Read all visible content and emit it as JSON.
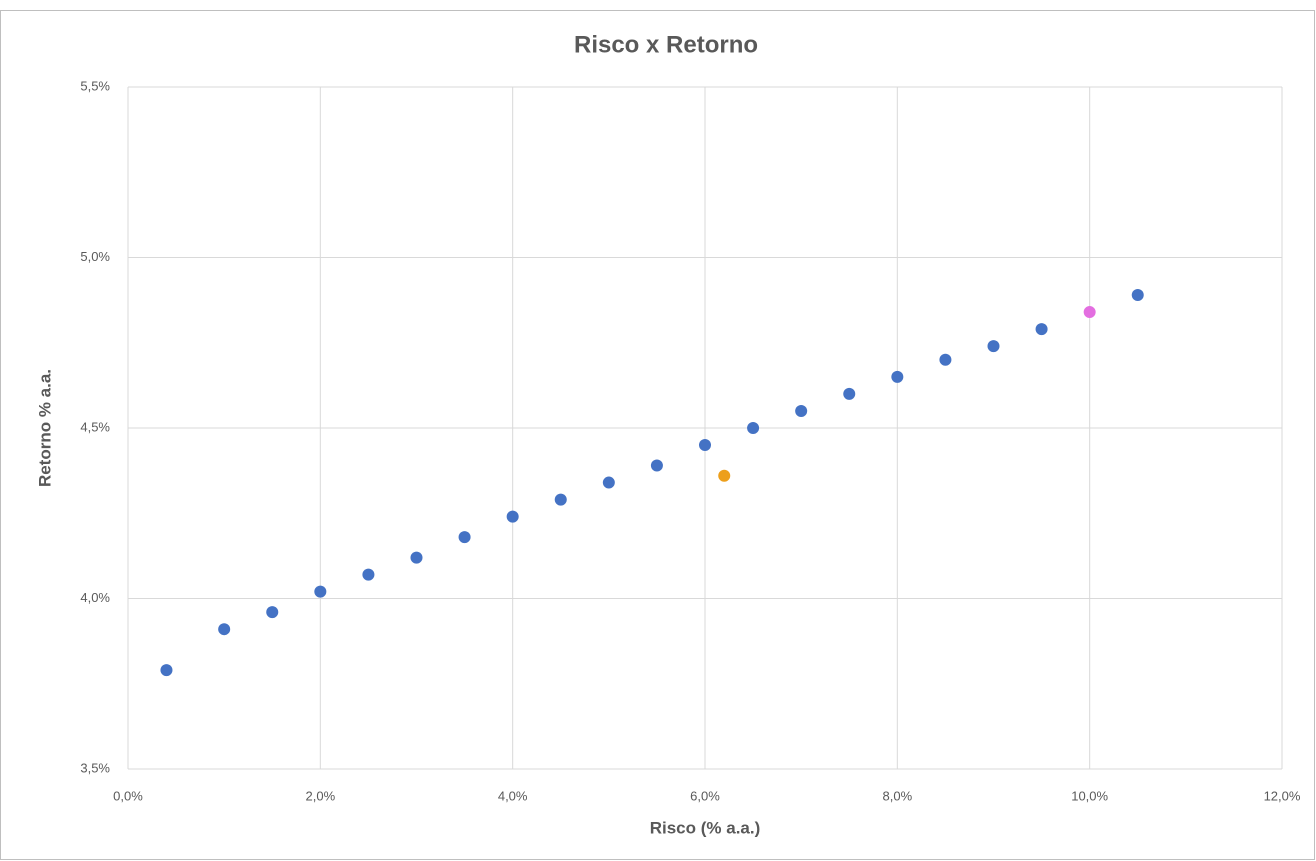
{
  "chart_data": {
    "type": "scatter",
    "title": "Risco x Retorno",
    "x_label": "Risco (% a.a.)",
    "y_label": "Retorno % a.a.",
    "series": [
      {
        "color": "#4472c4",
        "x": [
          0.4,
          1.0,
          1.5,
          2.0,
          2.5,
          3.0,
          3.5,
          4.0,
          4.5,
          5.0,
          5.5,
          6.0,
          6.5,
          7.0,
          7.5,
          8.0,
          8.5,
          9.0,
          9.5,
          10.5
        ],
        "values": [
          3.79,
          3.91,
          3.96,
          4.02,
          4.07,
          4.12,
          4.18,
          4.24,
          4.29,
          4.34,
          4.39,
          4.45,
          4.5,
          4.55,
          4.6,
          4.65,
          4.7,
          4.74,
          4.79,
          4.89
        ]
      },
      {
        "color": "#ed9f1b",
        "x": [
          6.2
        ],
        "values": [
          4.36
        ]
      },
      {
        "color": "#e36ee0",
        "x": [
          10.0
        ],
        "values": [
          4.84
        ]
      }
    ],
    "xlim": [
      0,
      12
    ],
    "xticks": [
      {
        "value": 0,
        "label": "0,0%"
      },
      {
        "value": 2,
        "label": "2,0%"
      },
      {
        "value": 4,
        "label": "4,0%"
      },
      {
        "value": 6,
        "label": "6,0%"
      },
      {
        "value": 8,
        "label": "8,0%"
      },
      {
        "value": 10,
        "label": "10,0%"
      },
      {
        "value": 12,
        "label": "12,0%"
      }
    ],
    "ylim": [
      3.5,
      5.5
    ],
    "yticks": [
      {
        "value": 3.5,
        "label": "3,5%"
      },
      {
        "value": 4.0,
        "label": "4,0%"
      },
      {
        "value": 4.5,
        "label": "4,5%"
      },
      {
        "value": 5.0,
        "label": "5,0%"
      },
      {
        "value": 5.5,
        "label": "5,5%"
      }
    ],
    "grid": true
  }
}
